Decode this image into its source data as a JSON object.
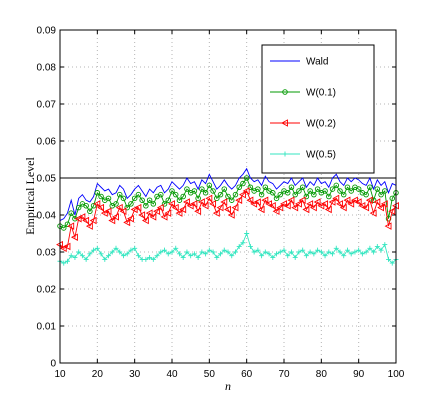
{
  "chart_data": {
    "type": "line",
    "title": "",
    "xlabel": "n",
    "ylabel": "Empirical Level",
    "xlim": [
      10,
      100
    ],
    "ylim": [
      0,
      0.09
    ],
    "xticks": [
      10,
      20,
      30,
      40,
      50,
      60,
      70,
      80,
      90,
      100
    ],
    "xtick_labels": [
      "10",
      "20",
      "30",
      "40",
      "50",
      "60",
      "70",
      "80",
      "90",
      "100"
    ],
    "yticks": [
      0,
      0.01,
      0.02,
      0.03,
      0.04,
      0.05,
      0.06,
      0.07,
      0.08,
      0.09
    ],
    "ytick_labels": [
      "0",
      "0.01",
      "0.02",
      "0.03",
      "0.04",
      "0.05",
      "0.06",
      "0.07",
      "0.08",
      "0.09"
    ],
    "grid": true,
    "legend_position": "top-right",
    "reference_line": {
      "y": 0.05,
      "color": "#000000"
    },
    "x": [
      10,
      11,
      12,
      13,
      14,
      15,
      16,
      17,
      18,
      19,
      20,
      21,
      22,
      23,
      24,
      25,
      26,
      27,
      28,
      29,
      30,
      31,
      32,
      33,
      34,
      35,
      36,
      37,
      38,
      39,
      40,
      41,
      42,
      43,
      44,
      45,
      46,
      47,
      48,
      49,
      50,
      51,
      52,
      53,
      54,
      55,
      56,
      57,
      58,
      59,
      60,
      61,
      62,
      63,
      64,
      65,
      66,
      67,
      68,
      69,
      70,
      71,
      72,
      73,
      74,
      75,
      76,
      77,
      78,
      79,
      80,
      81,
      82,
      83,
      84,
      85,
      86,
      87,
      88,
      89,
      90,
      91,
      92,
      93,
      94,
      95,
      96,
      97,
      98,
      99,
      100
    ],
    "series": [
      {
        "name": "Wald",
        "color": "#0000ff",
        "marker": "none",
        "values": [
          0.0385,
          0.039,
          0.0405,
          0.044,
          0.04,
          0.0445,
          0.0455,
          0.044,
          0.0435,
          0.045,
          0.0485,
          0.0475,
          0.0465,
          0.047,
          0.0455,
          0.046,
          0.048,
          0.047,
          0.0445,
          0.0455,
          0.047,
          0.048,
          0.0465,
          0.045,
          0.047,
          0.046,
          0.0475,
          0.048,
          0.046,
          0.047,
          0.049,
          0.048,
          0.047,
          0.048,
          0.05,
          0.0485,
          0.049,
          0.047,
          0.0495,
          0.0485,
          0.051,
          0.049,
          0.047,
          0.048,
          0.0495,
          0.048,
          0.047,
          0.048,
          0.05,
          0.051,
          0.0525,
          0.05,
          0.049,
          0.0495,
          0.048,
          0.0505,
          0.049,
          0.0485,
          0.047,
          0.048,
          0.049,
          0.0485,
          0.05,
          0.048,
          0.049,
          0.05,
          0.0475,
          0.049,
          0.048,
          0.05,
          0.0485,
          0.049,
          0.0475,
          0.05,
          0.051,
          0.049,
          0.048,
          0.05,
          0.049,
          0.05,
          0.0495,
          0.0485,
          0.048,
          0.05,
          0.047,
          0.0495,
          0.048,
          0.049,
          0.046,
          0.0485,
          0.048
        ]
      },
      {
        "name": "W(0.1)",
        "color": "#009900",
        "marker": "circle",
        "values": [
          0.037,
          0.0365,
          0.0375,
          0.0405,
          0.039,
          0.042,
          0.043,
          0.0425,
          0.041,
          0.0425,
          0.046,
          0.045,
          0.044,
          0.0445,
          0.0425,
          0.043,
          0.0455,
          0.0445,
          0.042,
          0.043,
          0.0445,
          0.0455,
          0.044,
          0.0425,
          0.044,
          0.043,
          0.045,
          0.0455,
          0.043,
          0.044,
          0.0465,
          0.0455,
          0.044,
          0.045,
          0.047,
          0.046,
          0.0465,
          0.0445,
          0.047,
          0.046,
          0.048,
          0.0465,
          0.0445,
          0.0455,
          0.047,
          0.045,
          0.044,
          0.0455,
          0.0475,
          0.0485,
          0.05,
          0.0475,
          0.0465,
          0.047,
          0.0455,
          0.0475,
          0.0465,
          0.046,
          0.0445,
          0.0455,
          0.0465,
          0.046,
          0.0475,
          0.0455,
          0.0465,
          0.0475,
          0.045,
          0.0465,
          0.0455,
          0.047,
          0.046,
          0.0465,
          0.045,
          0.047,
          0.048,
          0.0465,
          0.0455,
          0.0475,
          0.0465,
          0.0475,
          0.047,
          0.046,
          0.0455,
          0.0475,
          0.044,
          0.047,
          0.0455,
          0.0465,
          0.039,
          0.0445,
          0.046
        ]
      },
      {
        "name": "W(0.2)",
        "color": "#ff0000",
        "marker": "triangle-left",
        "values": [
          0.032,
          0.031,
          0.0315,
          0.037,
          0.034,
          0.039,
          0.0395,
          0.0385,
          0.037,
          0.0385,
          0.043,
          0.042,
          0.0405,
          0.041,
          0.0385,
          0.0395,
          0.042,
          0.041,
          0.038,
          0.039,
          0.0415,
          0.042,
          0.04,
          0.0385,
          0.0405,
          0.0395,
          0.041,
          0.042,
          0.0395,
          0.0405,
          0.043,
          0.042,
          0.0405,
          0.0415,
          0.0435,
          0.0425,
          0.043,
          0.041,
          0.0435,
          0.0425,
          0.0445,
          0.043,
          0.0405,
          0.042,
          0.0435,
          0.0415,
          0.04,
          0.042,
          0.044,
          0.0455,
          0.0465,
          0.044,
          0.043,
          0.0435,
          0.0415,
          0.044,
          0.043,
          0.0425,
          0.041,
          0.042,
          0.043,
          0.0425,
          0.044,
          0.042,
          0.043,
          0.044,
          0.0415,
          0.043,
          0.042,
          0.0435,
          0.0425,
          0.043,
          0.0415,
          0.0435,
          0.0445,
          0.043,
          0.042,
          0.044,
          0.043,
          0.044,
          0.0435,
          0.0425,
          0.042,
          0.044,
          0.0405,
          0.0435,
          0.042,
          0.043,
          0.037,
          0.041,
          0.0425
        ]
      },
      {
        "name": "W(0.5)",
        "color": "#33e6c0",
        "marker": "plus",
        "values": [
          0.0275,
          0.027,
          0.0275,
          0.029,
          0.0285,
          0.03,
          0.029,
          0.028,
          0.0295,
          0.0305,
          0.031,
          0.0295,
          0.028,
          0.029,
          0.03,
          0.031,
          0.03,
          0.029,
          0.0295,
          0.0305,
          0.031,
          0.029,
          0.028,
          0.028,
          0.0285,
          0.028,
          0.029,
          0.03,
          0.0305,
          0.0295,
          0.03,
          0.031,
          0.0295,
          0.0285,
          0.03,
          0.029,
          0.0295,
          0.0285,
          0.03,
          0.0295,
          0.0305,
          0.03,
          0.0285,
          0.0295,
          0.0305,
          0.03,
          0.029,
          0.03,
          0.0315,
          0.0325,
          0.035,
          0.0315,
          0.03,
          0.0305,
          0.029,
          0.03,
          0.0295,
          0.0285,
          0.0295,
          0.03,
          0.0305,
          0.029,
          0.03,
          0.0285,
          0.03,
          0.0305,
          0.029,
          0.03,
          0.0295,
          0.0305,
          0.03,
          0.029,
          0.03,
          0.0295,
          0.031,
          0.03,
          0.029,
          0.0305,
          0.0295,
          0.03,
          0.0305,
          0.0295,
          0.03,
          0.031,
          0.03,
          0.0315,
          0.0305,
          0.032,
          0.028,
          0.027,
          0.028
        ]
      }
    ]
  }
}
